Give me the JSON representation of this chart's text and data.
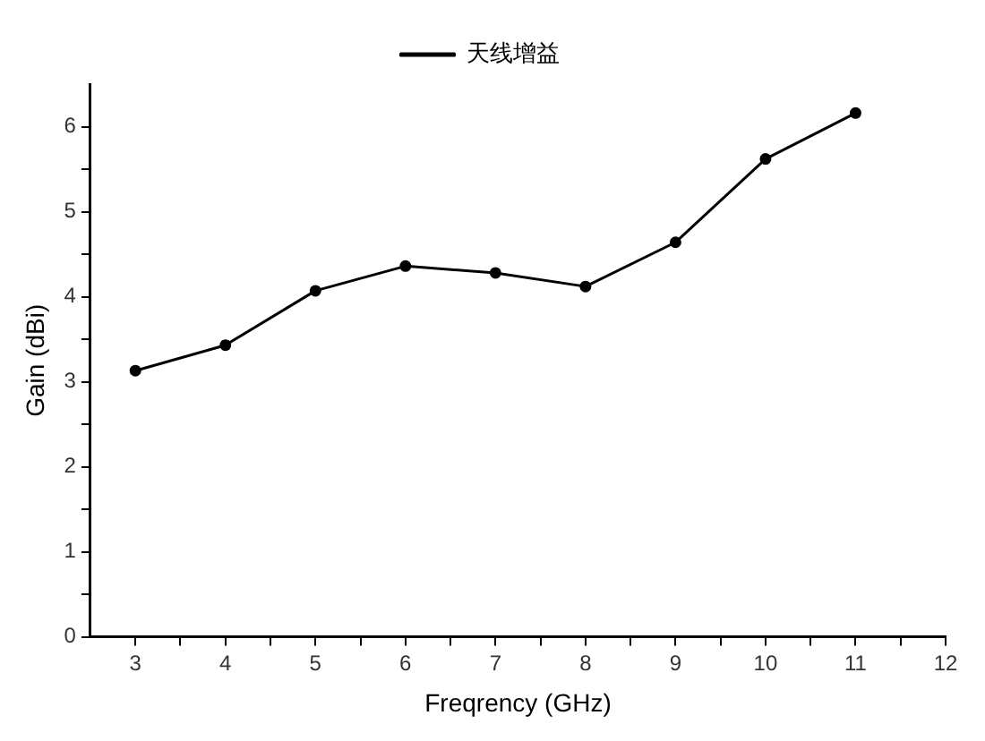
{
  "chart_data": {
    "type": "line",
    "xlabel": "Freqrency (GHz)",
    "ylabel": "Gain (dBi)",
    "x": [
      3,
      4,
      5,
      6,
      7,
      8,
      9,
      10,
      11
    ],
    "series": [
      {
        "name": "天线增益",
        "color": "#000000",
        "values": [
          3.13,
          3.43,
          4.07,
          4.36,
          4.28,
          4.12,
          4.64,
          5.62,
          6.16
        ]
      }
    ],
    "xlim": [
      2.5,
      12
    ],
    "xticks": [
      3,
      {
        "value": 3.5,
        "label": null
      },
      4,
      {
        "value": 4.5,
        "label": null
      },
      5,
      {
        "value": 5.5,
        "label": null
      },
      6,
      {
        "value": 6.5,
        "label": null
      },
      7,
      {
        "value": 7.5,
        "label": null
      },
      8,
      {
        "value": 8.5,
        "label": null
      },
      9,
      {
        "value": 9.5,
        "label": null
      },
      10,
      {
        "value": 10.5,
        "label": null
      },
      11,
      {
        "value": 11.5,
        "label": null
      },
      12
    ],
    "ylim": [
      0,
      6.5
    ],
    "yticks": [
      0,
      {
        "value": 0.5,
        "label": null
      },
      1,
      {
        "value": 1.5,
        "label": null
      },
      2,
      {
        "value": 2.5,
        "label": null
      },
      3,
      {
        "value": 3.5,
        "label": null
      },
      4,
      {
        "value": 4.5,
        "label": null
      },
      5,
      {
        "value": 5.5,
        "label": null
      },
      6
    ],
    "grid": false,
    "legend": "top",
    "marker": "circle",
    "line_style": "solid"
  }
}
